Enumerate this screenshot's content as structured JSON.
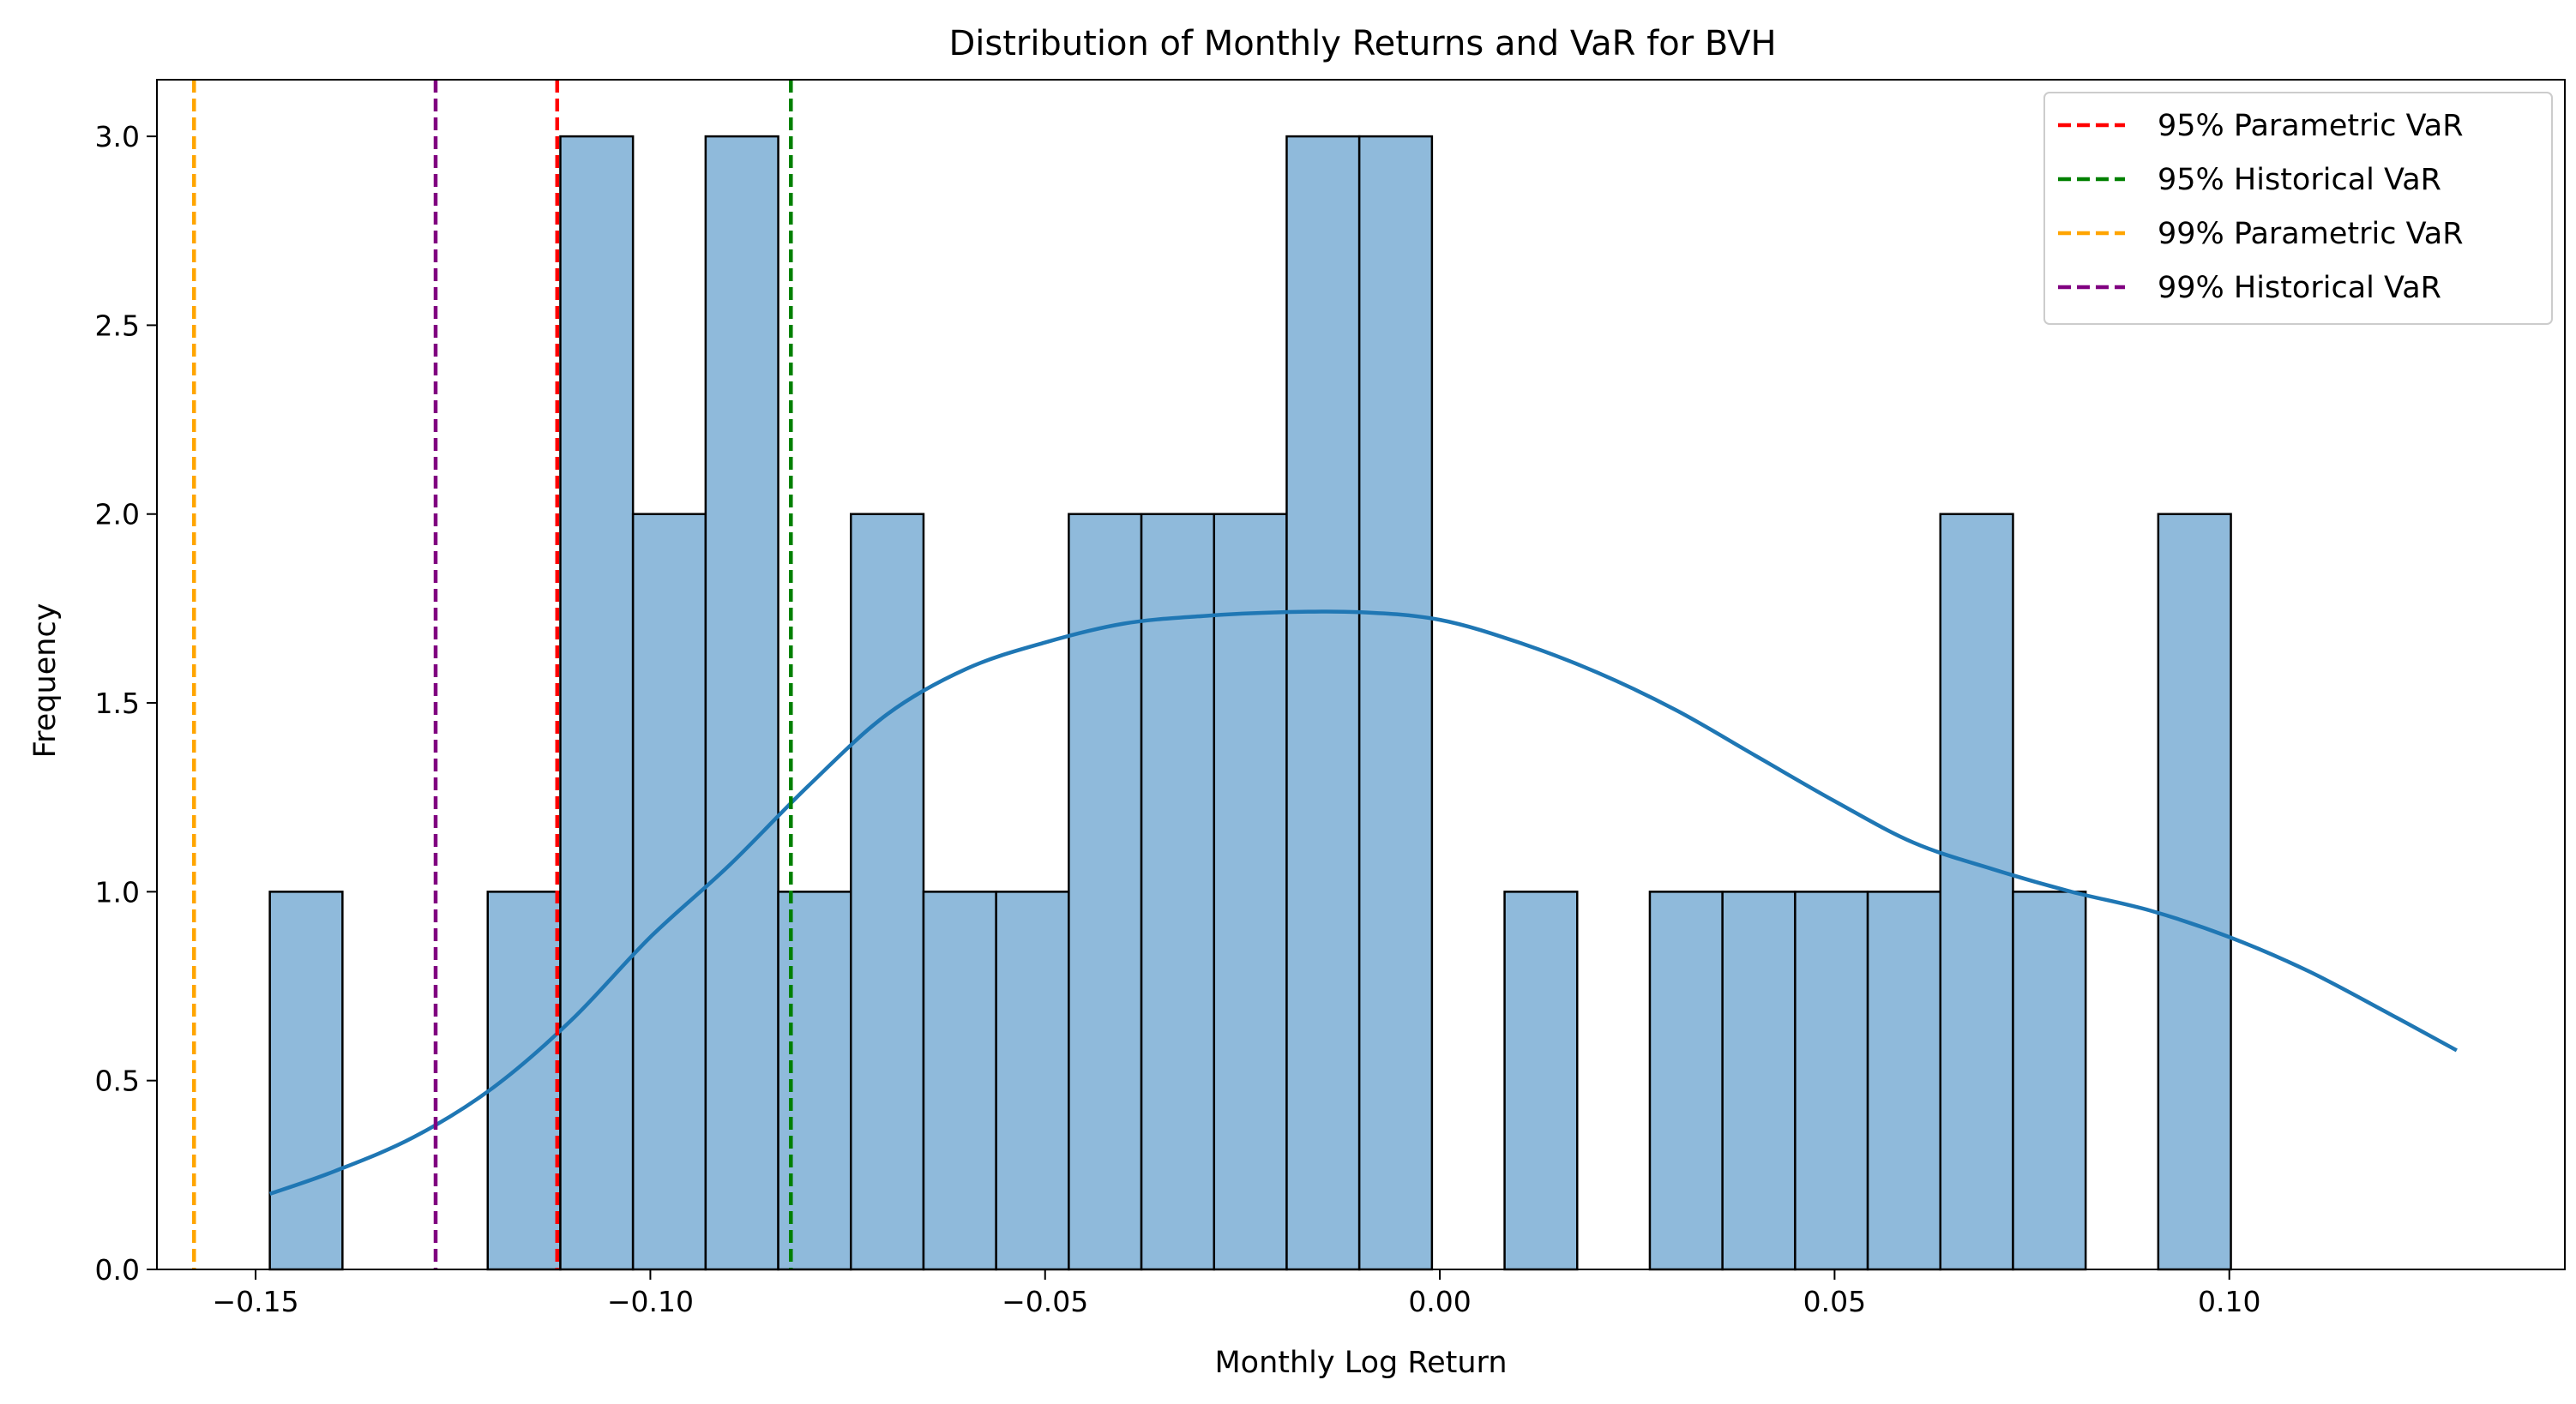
{
  "chart_data": {
    "type": "histogram",
    "title": "Distribution of Monthly Returns and VaR for BVH",
    "xlabel": "Monthly Log Return",
    "ylabel": "Frequency",
    "xlim": [
      -0.1625,
      0.1425
    ],
    "ylim": [
      0,
      3.15
    ],
    "x_ticks": [
      {
        "value": -0.15,
        "label": "−0.15"
      },
      {
        "value": -0.1,
        "label": "−0.10"
      },
      {
        "value": -0.05,
        "label": "−0.05"
      },
      {
        "value": 0.0,
        "label": "0.00"
      },
      {
        "value": 0.05,
        "label": "0.05"
      },
      {
        "value": 0.1,
        "label": "0.10"
      }
    ],
    "y_ticks": [
      {
        "value": 0.0,
        "label": "0.0"
      },
      {
        "value": 0.5,
        "label": "0.5"
      },
      {
        "value": 1.0,
        "label": "1.0"
      },
      {
        "value": 1.5,
        "label": "1.5"
      },
      {
        "value": 2.0,
        "label": "2.0"
      },
      {
        "value": 2.5,
        "label": "2.5"
      },
      {
        "value": 3.0,
        "label": "3.0"
      }
    ],
    "bin_start": -0.1482,
    "bin_width": 0.0092,
    "counts": [
      1,
      0,
      0,
      1,
      3,
      2,
      3,
      1,
      2,
      1,
      1,
      2,
      2,
      2,
      3,
      3,
      0,
      1,
      0,
      1,
      1,
      1,
      1,
      2,
      1,
      0,
      2
    ],
    "bar_color": "#8fbadb",
    "bar_edge_color": "#000000",
    "kde": {
      "color": "#1f77b4",
      "x": [
        -0.1482,
        -0.14,
        -0.13,
        -0.12,
        -0.11,
        -0.1,
        -0.09,
        -0.08,
        -0.07,
        -0.06,
        -0.05,
        -0.04,
        -0.03,
        -0.02,
        -0.01,
        0.0,
        0.01,
        0.02,
        0.03,
        0.04,
        0.05,
        0.06,
        0.07,
        0.08,
        0.09,
        0.1,
        0.11,
        0.12,
        0.1288
      ],
      "y": [
        0.2,
        0.26,
        0.35,
        0.48,
        0.66,
        0.88,
        1.07,
        1.28,
        1.47,
        1.59,
        1.66,
        1.71,
        1.73,
        1.74,
        1.74,
        1.72,
        1.66,
        1.58,
        1.48,
        1.36,
        1.24,
        1.13,
        1.06,
        1.0,
        0.95,
        0.88,
        0.79,
        0.68,
        0.58
      ]
    },
    "var_lines": [
      {
        "name": "95% Parametric VaR",
        "value": -0.1118,
        "color": "#ff0000"
      },
      {
        "name": "95% Historical VaR",
        "value": -0.0822,
        "color": "#008000"
      },
      {
        "name": "99% Parametric VaR",
        "value": -0.1578,
        "color": "#ffa500"
      },
      {
        "name": "99% Historical VaR",
        "value": -0.1272,
        "color": "#800080"
      }
    ],
    "legend_position": "upper right",
    "grid": false
  }
}
